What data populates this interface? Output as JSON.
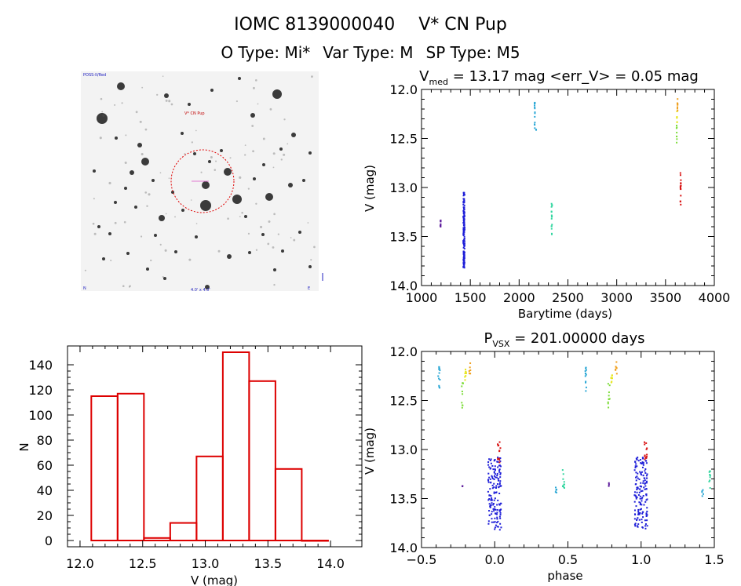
{
  "header": {
    "title_id": "IOMC 8139000040",
    "title_star": "V* CN Pup",
    "otype": "O Type: Mi*",
    "vartype": "Var Type: M",
    "sptype": "SP Type: M5"
  },
  "colors": {
    "hist": "#dd0000",
    "palette": [
      "#5a189a",
      "#1f1fd8",
      "#2aa7d5",
      "#33d6a0",
      "#7ddc3a",
      "#e6e61a",
      "#f0a020",
      "#e25a10",
      "#d81010"
    ]
  },
  "image_panel": {
    "labels": {
      "top_left": "POSS-II/Red",
      "target": "V* CN Pup",
      "bottom_left": "N",
      "bottom_center": "4.0' x 4.0'",
      "bottom_right": "E"
    }
  },
  "chart_data": [
    {
      "id": "lightcurve",
      "type": "scatter",
      "title_prefix": "V",
      "title_sub": "med",
      "title_rest": " = 13.17 mag <err_V> = 0.05 mag",
      "xlabel": "Barytime (days)",
      "ylabel": "V (mag)",
      "xlim": [
        1000,
        4000
      ],
      "ylim": [
        14.0,
        12.0
      ],
      "y_inverted": true,
      "xticks": [
        1000,
        1500,
        2000,
        2500,
        3000,
        3500,
        4000
      ],
      "yticks": [
        12.0,
        12.5,
        13.0,
        13.5,
        14.0
      ],
      "clusters": [
        {
          "x": 1195,
          "width": 6,
          "ymin": 13.32,
          "ymax": 13.4,
          "n": 8,
          "color_index": 0
        },
        {
          "x": 1435,
          "width": 14,
          "ymin": 13.05,
          "ymax": 13.82,
          "n": 160,
          "color_index": 1
        },
        {
          "x": 2160,
          "width": 4,
          "ymin": 12.12,
          "ymax": 12.4,
          "n": 14,
          "color_index": 2
        },
        {
          "x": 2175,
          "width": 2,
          "ymin": 12.4,
          "ymax": 12.45,
          "n": 2,
          "color_index": 2
        },
        {
          "x": 2335,
          "width": 6,
          "ymin": 13.15,
          "ymax": 13.5,
          "n": 16,
          "color_index": 3
        },
        {
          "x": 3615,
          "width": 4,
          "ymin": 12.35,
          "ymax": 12.55,
          "n": 8,
          "color_index": 4
        },
        {
          "x": 3618,
          "width": 4,
          "ymin": 12.22,
          "ymax": 12.35,
          "n": 6,
          "color_index": 5
        },
        {
          "x": 3622,
          "width": 4,
          "ymin": 12.08,
          "ymax": 12.22,
          "n": 8,
          "color_index": 6
        },
        {
          "x": 3655,
          "width": 6,
          "ymin": 12.85,
          "ymax": 13.2,
          "n": 14,
          "color_index": 8
        }
      ]
    },
    {
      "id": "histogram",
      "type": "bar",
      "xlabel": "V (mag)",
      "ylabel": "N",
      "xlim": [
        11.9,
        14.25
      ],
      "ylim": [
        -5,
        155
      ],
      "xticks": [
        12.0,
        12.5,
        13.0,
        13.5,
        14.0
      ],
      "xtick_labels": [
        "12.0",
        "12.5",
        "13.0",
        "13.5",
        "14.0"
      ],
      "yticks": [
        0,
        20,
        40,
        60,
        80,
        100,
        120,
        140
      ],
      "bins": [
        {
          "x0": 12.09,
          "x1": 12.3,
          "count": 115
        },
        {
          "x0": 12.3,
          "x1": 12.51,
          "count": 117
        },
        {
          "x0": 12.51,
          "x1": 12.72,
          "count": 2
        },
        {
          "x0": 12.72,
          "x1": 12.93,
          "count": 14
        },
        {
          "x0": 12.93,
          "x1": 13.14,
          "count": 67
        },
        {
          "x0": 13.14,
          "x1": 13.35,
          "count": 150
        },
        {
          "x0": 13.35,
          "x1": 13.56,
          "count": 127
        },
        {
          "x0": 13.56,
          "x1": 13.77,
          "count": 57
        },
        {
          "x0": 13.77,
          "x1": 13.98,
          "count": 0
        }
      ]
    },
    {
      "id": "phased",
      "type": "scatter",
      "title_prefix": "P",
      "title_sub": "VSX",
      "title_rest": " = 201.00000 days",
      "xlabel": "phase",
      "ylabel": "V (mag)",
      "period_days": 201.0,
      "xlim": [
        -0.5,
        1.5
      ],
      "ylim": [
        14.0,
        12.0
      ],
      "y_inverted": true,
      "xticks": [
        -0.5,
        0.0,
        0.5,
        1.0,
        1.5
      ],
      "xtick_labels": [
        "−0.5",
        "0.0",
        "0.5",
        "1.0",
        "1.5"
      ],
      "yticks": [
        12.0,
        12.5,
        13.0,
        13.5,
        14.0
      ],
      "clusters": [
        {
          "x": -0.38,
          "width": 0.012,
          "ymin": 12.15,
          "ymax": 12.42,
          "n": 12,
          "color_index": 2
        },
        {
          "x": -0.22,
          "width": 0.012,
          "ymin": 12.32,
          "ymax": 12.58,
          "n": 10,
          "color_index": 4
        },
        {
          "x": -0.2,
          "width": 0.012,
          "ymin": 12.18,
          "ymax": 12.32,
          "n": 8,
          "color_index": 5
        },
        {
          "x": -0.17,
          "width": 0.01,
          "ymin": 12.1,
          "ymax": 12.25,
          "n": 7,
          "color_index": 6
        },
        {
          "x": -0.22,
          "width": 0.004,
          "ymin": 13.33,
          "ymax": 13.38,
          "n": 3,
          "color_index": 0
        },
        {
          "x": 0.0,
          "width": 0.09,
          "ymin": 13.08,
          "ymax": 13.82,
          "n": 150,
          "color_index": 1
        },
        {
          "x": 0.03,
          "width": 0.02,
          "ymin": 12.92,
          "ymax": 13.15,
          "n": 12,
          "color_index": 8
        },
        {
          "x": 0.42,
          "width": 0.01,
          "ymin": 13.38,
          "ymax": 13.48,
          "n": 5,
          "color_index": 2
        },
        {
          "x": 0.47,
          "width": 0.012,
          "ymin": 13.2,
          "ymax": 13.4,
          "n": 10,
          "color_index": 3
        },
        {
          "x": 0.62,
          "width": 0.012,
          "ymin": 12.15,
          "ymax": 12.42,
          "n": 12,
          "color_index": 2
        },
        {
          "x": 0.78,
          "width": 0.012,
          "ymin": 12.32,
          "ymax": 12.58,
          "n": 10,
          "color_index": 4
        },
        {
          "x": 0.8,
          "width": 0.012,
          "ymin": 12.18,
          "ymax": 12.32,
          "n": 8,
          "color_index": 5
        },
        {
          "x": 0.83,
          "width": 0.01,
          "ymin": 12.1,
          "ymax": 12.25,
          "n": 7,
          "color_index": 6
        },
        {
          "x": 0.78,
          "width": 0.004,
          "ymin": 13.33,
          "ymax": 13.38,
          "n": 3,
          "color_index": 0
        },
        {
          "x": 1.0,
          "width": 0.09,
          "ymin": 13.08,
          "ymax": 13.82,
          "n": 150,
          "color_index": 1
        },
        {
          "x": 1.03,
          "width": 0.02,
          "ymin": 12.92,
          "ymax": 13.1,
          "n": 12,
          "color_index": 8
        },
        {
          "x": 1.42,
          "width": 0.01,
          "ymin": 13.38,
          "ymax": 13.48,
          "n": 5,
          "color_index": 2
        },
        {
          "x": 1.47,
          "width": 0.012,
          "ymin": 13.2,
          "ymax": 13.4,
          "n": 10,
          "color_index": 3
        }
      ]
    }
  ]
}
